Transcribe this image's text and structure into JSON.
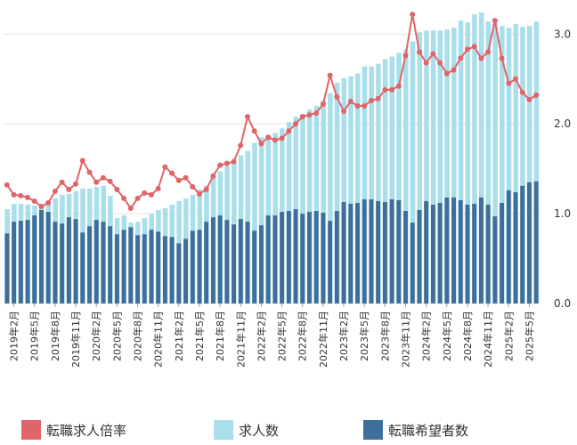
{
  "chart_data": {
    "type": "bar",
    "y_ticks": [
      0.0,
      1.0,
      2.0,
      3.0
    ],
    "y_tick_labels": [
      "0.0",
      "1.0",
      "2.0",
      "3.0"
    ],
    "ylim": [
      0,
      3.3
    ],
    "x_tick_labels": [
      "2019年2月",
      "2019年5月",
      "2019年8月",
      "2019年11月",
      "2020年2月",
      "2020年5月",
      "2020年8月",
      "2020年11月",
      "2021年2月",
      "2021年5月",
      "2021年8月",
      "2021年11月",
      "2022年2月",
      "2022年5月",
      "2022年8月",
      "2022年11月",
      "2023年2月",
      "2023年5月",
      "2023年8月",
      "2023年11月",
      "2024年2月",
      "2024年5月",
      "2024年8月",
      "2024年11月",
      "2025年2月",
      "2025年5月"
    ],
    "x_tick_every": 3,
    "x_tick_offset": 1,
    "legend_position": "bottom",
    "colors": {
      "ratio": "#e06469",
      "openings": "#a8dfeb",
      "seekers": "#3d6f9a",
      "grid": "#e5e5e5"
    },
    "series": [
      {
        "name": "転職求人倍率",
        "kind": "line",
        "values": [
          1.32,
          1.21,
          1.2,
          1.18,
          1.14,
          1.08,
          1.12,
          1.25,
          1.35,
          1.27,
          1.33,
          1.59,
          1.46,
          1.35,
          1.4,
          1.36,
          1.27,
          1.17,
          1.06,
          1.17,
          1.23,
          1.21,
          1.28,
          1.52,
          1.45,
          1.37,
          1.4,
          1.3,
          1.22,
          1.27,
          1.42,
          1.54,
          1.56,
          1.58,
          1.76,
          2.08,
          1.92,
          1.78,
          1.85,
          1.82,
          1.84,
          1.92,
          2.0,
          2.08,
          2.1,
          2.12,
          2.22,
          2.54,
          2.3,
          2.14,
          2.25,
          2.2,
          2.2,
          2.26,
          2.28,
          2.38,
          2.38,
          2.42,
          2.76,
          3.22,
          2.8,
          2.68,
          2.78,
          2.68,
          2.56,
          2.6,
          2.73,
          2.83,
          2.86,
          2.73,
          2.8,
          3.15,
          2.73,
          2.45,
          2.5,
          2.35,
          2.27,
          2.32
        ]
      },
      {
        "name": "求人数",
        "kind": "bar",
        "values": [
          1.05,
          1.11,
          1.11,
          1.1,
          1.09,
          1.07,
          1.14,
          1.17,
          1.21,
          1.22,
          1.25,
          1.28,
          1.28,
          1.3,
          1.31,
          1.2,
          0.95,
          0.98,
          0.9,
          0.91,
          0.95,
          1.0,
          1.04,
          1.06,
          1.1,
          1.14,
          1.17,
          1.21,
          1.27,
          1.31,
          1.42,
          1.47,
          1.53,
          1.58,
          1.65,
          1.7,
          1.79,
          1.85,
          1.88,
          1.9,
          1.95,
          2.02,
          2.08,
          2.11,
          2.16,
          2.2,
          2.26,
          2.34,
          2.46,
          2.51,
          2.53,
          2.56,
          2.64,
          2.64,
          2.67,
          2.72,
          2.75,
          2.79,
          2.83,
          2.92,
          3.02,
          3.04,
          3.04,
          3.04,
          3.05,
          3.07,
          3.15,
          3.13,
          3.22,
          3.24,
          3.14,
          3.13,
          3.09,
          3.07,
          3.11,
          3.08,
          3.09,
          3.14
        ]
      },
      {
        "name": "転職希望者数",
        "kind": "bar",
        "values": [
          0.78,
          0.91,
          0.92,
          0.93,
          0.98,
          1.04,
          1.02,
          0.91,
          0.89,
          0.96,
          0.94,
          0.79,
          0.86,
          0.93,
          0.91,
          0.86,
          0.77,
          0.82,
          0.85,
          0.76,
          0.77,
          0.82,
          0.8,
          0.75,
          0.74,
          0.67,
          0.72,
          0.81,
          0.82,
          0.91,
          0.96,
          0.98,
          0.93,
          0.88,
          0.94,
          0.91,
          0.81,
          0.87,
          0.98,
          0.98,
          1.02,
          1.03,
          1.05,
          1.0,
          1.02,
          1.03,
          1.01,
          0.92,
          1.03,
          1.13,
          1.11,
          1.12,
          1.16,
          1.16,
          1.14,
          1.13,
          1.16,
          1.15,
          1.03,
          0.9,
          1.04,
          1.14,
          1.1,
          1.12,
          1.18,
          1.18,
          1.15,
          1.1,
          1.11,
          1.18,
          1.1,
          0.97,
          1.12,
          1.26,
          1.24,
          1.31,
          1.35,
          1.36
        ]
      }
    ]
  },
  "legend": [
    {
      "label": "転職求人倍率",
      "color": "#e06469"
    },
    {
      "label": "求人数",
      "color": "#a8dfeb"
    },
    {
      "label": "転職希望者数",
      "color": "#3d6f9a"
    }
  ]
}
